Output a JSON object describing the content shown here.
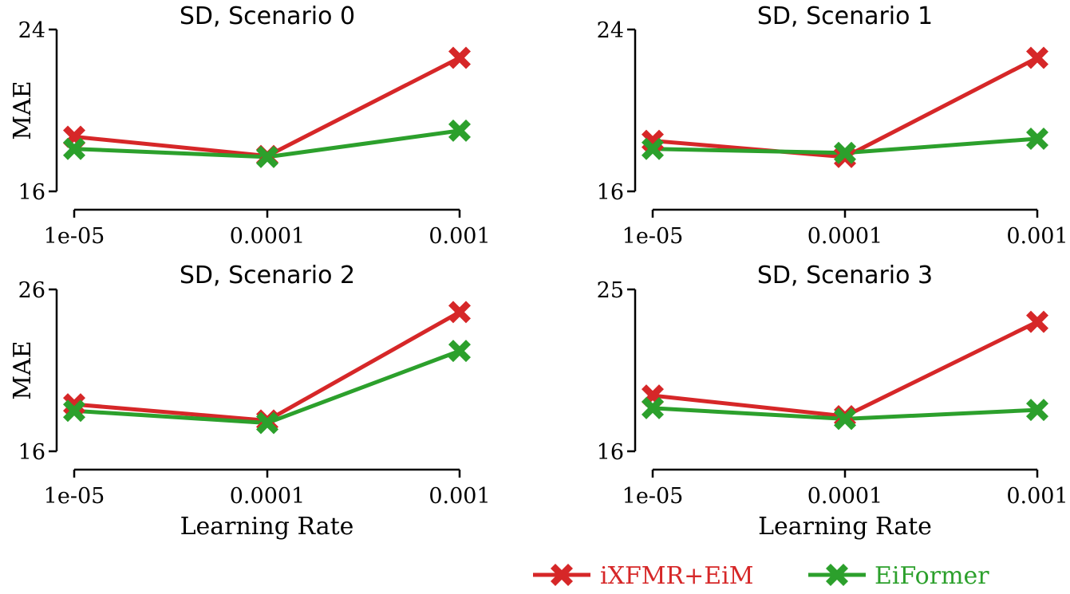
{
  "chart_data": [
    {
      "type": "line",
      "title": "SD, Scenario 0",
      "xlabel": "",
      "ylabel": "MAE",
      "categories": [
        "1e-05",
        "0.0001",
        "0.001"
      ],
      "ylim": [
        16,
        24
      ],
      "yticks": [
        "16",
        "24"
      ],
      "series": [
        {
          "name": "iXFMR+EiM",
          "values": [
            18.7,
            17.75,
            22.6
          ]
        },
        {
          "name": "EiFormer",
          "values": [
            18.1,
            17.7,
            19.0
          ]
        }
      ]
    },
    {
      "type": "line",
      "title": "SD, Scenario 1",
      "xlabel": "",
      "ylabel": "",
      "categories": [
        "1e-05",
        "0.0001",
        "0.001"
      ],
      "ylim": [
        16,
        24
      ],
      "yticks": [
        "16",
        "24"
      ],
      "series": [
        {
          "name": "iXFMR+EiM",
          "values": [
            18.5,
            17.7,
            22.6
          ]
        },
        {
          "name": "EiFormer",
          "values": [
            18.1,
            17.9,
            18.6
          ]
        }
      ]
    },
    {
      "type": "line",
      "title": "SD, Scenario 2",
      "xlabel": "Learning Rate",
      "ylabel": "MAE",
      "categories": [
        "1e-05",
        "0.0001",
        "0.001"
      ],
      "ylim": [
        16,
        26
      ],
      "yticks": [
        "16",
        "26"
      ],
      "series": [
        {
          "name": "iXFMR+EiM",
          "values": [
            18.9,
            17.9,
            24.6
          ]
        },
        {
          "name": "EiFormer",
          "values": [
            18.5,
            17.75,
            22.2
          ]
        }
      ]
    },
    {
      "type": "line",
      "title": "SD, Scenario 3",
      "xlabel": "Learning Rate",
      "ylabel": "",
      "categories": [
        "1e-05",
        "0.0001",
        "0.001"
      ],
      "ylim": [
        16,
        25
      ],
      "yticks": [
        "16",
        "25"
      ],
      "series": [
        {
          "name": "iXFMR+EiM",
          "values": [
            19.1,
            17.95,
            23.2
          ]
        },
        {
          "name": "EiFormer",
          "values": [
            18.4,
            17.8,
            18.3
          ]
        }
      ]
    }
  ],
  "legend": {
    "position": "bottom-right",
    "entries": [
      {
        "label": "iXFMR+EiM",
        "color": "#d62728"
      },
      {
        "label": "EiFormer",
        "color": "#2ca02c"
      }
    ]
  },
  "colors": {
    "iXFMR+EiM": "#d62728",
    "EiFormer": "#2ca02c"
  }
}
